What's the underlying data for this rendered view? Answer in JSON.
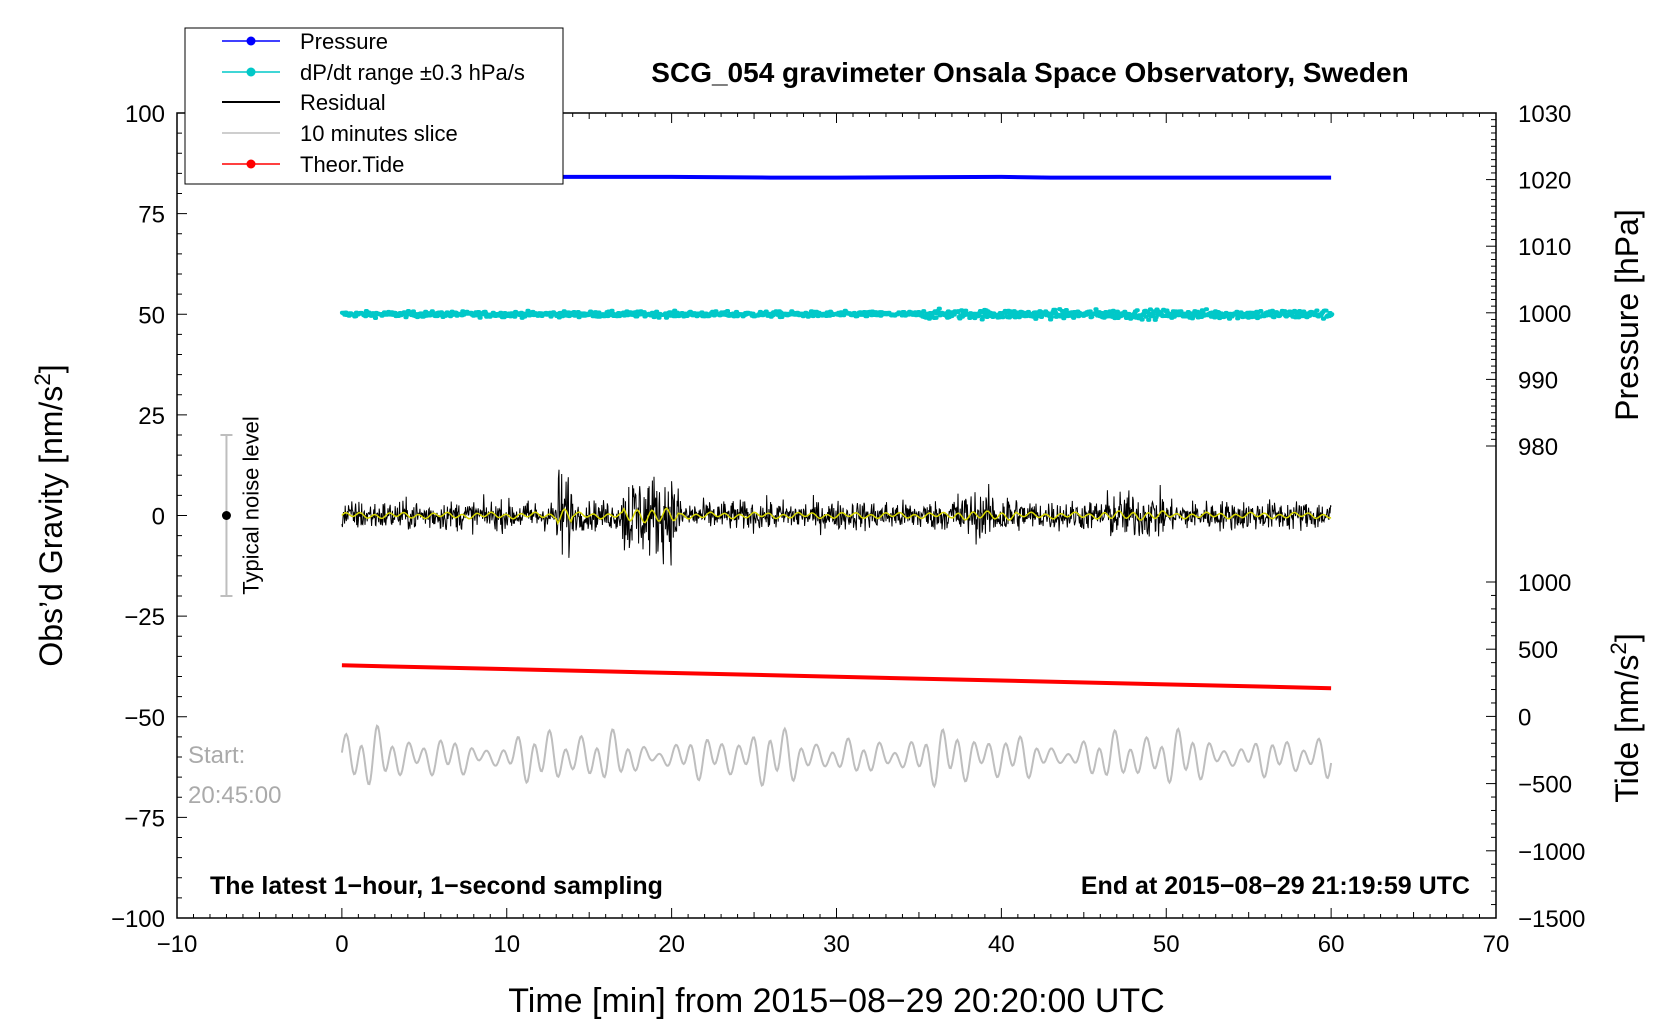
{
  "chart_data": {
    "type": "line",
    "title": "SCG_054 gravimeter Onsala Space Observatory, Sweden",
    "xlabel": "Time [min] from 2015−08−29 20:20:00 UTC",
    "ylabel_left": "Obs’d Gravity [nm/s²]",
    "ylabel_right_top": "Pressure [hPa]",
    "ylabel_right_bottom": "Tide [nm/s²]",
    "xlim": [
      -10,
      70
    ],
    "ylim": [
      -100,
      100
    ],
    "x_ticks": [
      "−10",
      "0",
      "10",
      "20",
      "30",
      "40",
      "50",
      "60",
      "70"
    ],
    "y_ticks_left": [
      "−100",
      "−75",
      "−50",
      "−25",
      "0",
      "25",
      "50",
      "75",
      "100"
    ],
    "pressure_axis": {
      "range": [
        980,
        1030
      ],
      "ticks": [
        "980",
        "990",
        "1000",
        "1010",
        "1020",
        "1030"
      ]
    },
    "tide_axis": {
      "range": [
        -1500,
        1000
      ],
      "ticks": [
        "−1500",
        "−1000",
        "−500",
        "0",
        "500",
        "1000"
      ]
    },
    "series": [
      {
        "name": "Pressure",
        "color": "#0000ff",
        "axis": "pressure",
        "x": [
          0,
          10,
          20,
          26,
          30,
          40,
          43,
          50,
          60
        ],
        "y": [
          1020.3,
          1020.4,
          1020.4,
          1020.3,
          1020.3,
          1020.4,
          1020.3,
          1020.3,
          1020.3
        ]
      },
      {
        "name": "dP/dt range ±0.3 hPa/s",
        "color": "#00c8c8",
        "axis": "gravity",
        "center": 50,
        "amplitude": 1.0
      },
      {
        "name": "Residual",
        "color": "#000000",
        "axis": "gravity",
        "center": 0,
        "typical_amplitude": 3,
        "max_amplitude": 15
      },
      {
        "name": "10 minutes slice",
        "color": "#bebebe",
        "axis": "gravity",
        "center": -60,
        "amplitude": 7
      },
      {
        "name": "Theor.Tide",
        "color": "#ff0000",
        "axis": "tide",
        "x": [
          0,
          60
        ],
        "y": [
          380,
          210
        ]
      }
    ],
    "noise_bar": {
      "label": "Typical noise level",
      "x": -7,
      "center": 0,
      "half_range": 20
    },
    "annotations": {
      "slice_start_label": "Start:",
      "slice_start_time": "20:45:00",
      "bottom_left": "The latest 1−hour, 1−second sampling",
      "bottom_right": "End at 2015−08−29 21:19:59 UTC"
    },
    "legend_position": "top-left",
    "grid": false
  }
}
